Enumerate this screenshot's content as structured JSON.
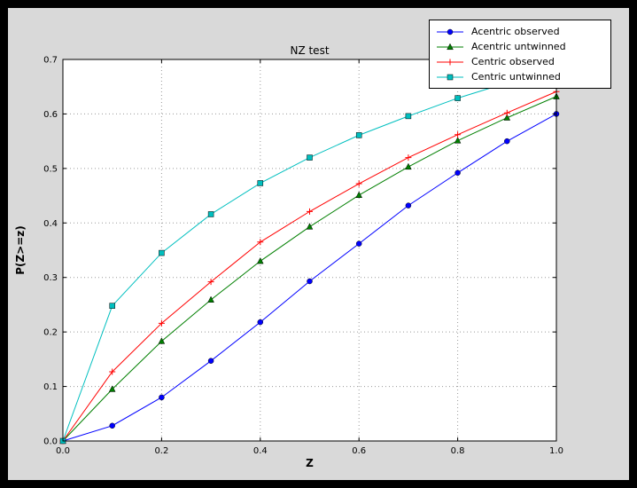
{
  "window": {
    "background_color": "#000000",
    "figure_background_color": "#d9d9d9"
  },
  "chart_data": {
    "type": "line",
    "title": "NZ test",
    "xlabel": "Z",
    "ylabel": "P(Z>=z)",
    "xlim": [
      0.0,
      1.0
    ],
    "ylim": [
      0.0,
      0.7
    ],
    "xticks": [
      0.0,
      0.2,
      0.4,
      0.6,
      0.8,
      1.0
    ],
    "xtick_labels": [
      "0.0",
      "0.2",
      "0.4",
      "0.6",
      "0.8",
      "1.0"
    ],
    "yticks": [
      0.0,
      0.1,
      0.2,
      0.3,
      0.4,
      0.5,
      0.6,
      0.7
    ],
    "ytick_labels": [
      "0.0",
      "0.1",
      "0.2",
      "0.3",
      "0.4",
      "0.5",
      "0.6",
      "0.7"
    ],
    "grid": true,
    "grid_color": "#9a9a9a",
    "legend_position": "upper-right",
    "x": [
      0.0,
      0.1,
      0.2,
      0.3,
      0.4,
      0.5,
      0.6,
      0.7,
      0.8,
      0.9,
      1.0
    ],
    "series": [
      {
        "name": "Acentric observed",
        "color": "#0000ff",
        "marker": "circle",
        "values": [
          0.0,
          0.028,
          0.08,
          0.147,
          0.218,
          0.293,
          0.362,
          0.432,
          0.492,
          0.55,
          0.6
        ]
      },
      {
        "name": "Acentric untwinned",
        "color": "#007f00",
        "marker": "triangle",
        "values": [
          0.0,
          0.095,
          0.183,
          0.259,
          0.33,
          0.393,
          0.451,
          0.503,
          0.551,
          0.593,
          0.632
        ]
      },
      {
        "name": "Centric observed",
        "color": "#ff0000",
        "marker": "plus",
        "values": [
          0.0,
          0.127,
          0.216,
          0.292,
          0.365,
          0.421,
          0.472,
          0.52,
          0.562,
          0.602,
          0.641
        ]
      },
      {
        "name": "Centric untwinned",
        "color": "#00bfbf",
        "marker": "square",
        "values": [
          0.0,
          0.248,
          0.345,
          0.416,
          0.473,
          0.52,
          0.561,
          0.596,
          0.629,
          0.657,
          0.683
        ]
      }
    ]
  }
}
